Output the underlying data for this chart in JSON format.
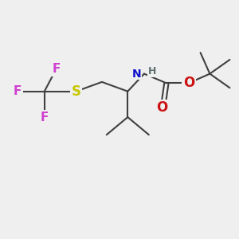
{
  "bg_color": "#efefef",
  "atom_colors": {
    "C": "#404040",
    "F": "#d040d0",
    "S": "#c8c800",
    "N": "#1010cc",
    "H": "#607070",
    "O": "#cc1010"
  },
  "bond_color": "#404040",
  "bond_width": 1.5,
  "font_size_F": 11,
  "font_size_S": 12,
  "font_size_NH": 10,
  "font_size_O": 12
}
